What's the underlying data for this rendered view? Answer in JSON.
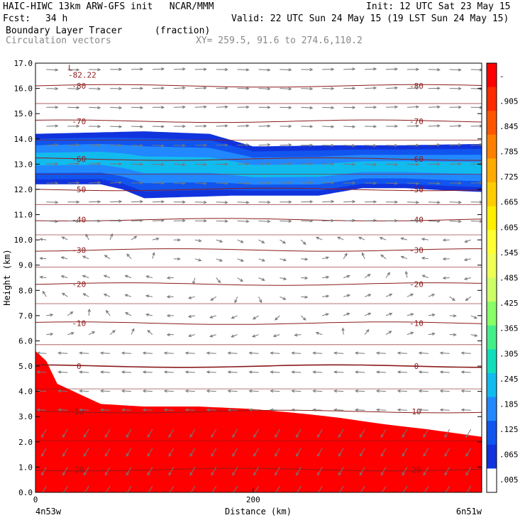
{
  "header": {
    "title_left": "HAIC-HIWC 13km ARW-GFS init   NCAR/MMM",
    "init": "Init: 12 UTC Sat 23 May 15",
    "fcst_label": "Fcst:",
    "fcst_value": "34 h",
    "valid": "Valid: 22 UTC Sun 24 May 15 (19 LST Sun 24 May 15)",
    "field_name": "Boundary Layer Tracer",
    "field_units": "(fraction)",
    "vector_name": "Circulation vectors",
    "xy": "XY= 259.5, 91.6 to 274.6,110.2"
  },
  "chart_data": {
    "type": "heatmap",
    "ylabel": "Height (km)",
    "xlabel": "Distance (km)",
    "ylim": [
      0,
      17
    ],
    "xlim": [
      0,
      410
    ],
    "yticks": [
      "0.0",
      "1.0",
      "2.0",
      "3.0",
      "4.0",
      "5.0",
      "6.0",
      "7.0",
      "8.0",
      "9.0",
      "10.0",
      "11.0",
      "12.0",
      "13.0",
      "14.0",
      "15.0",
      "16.0",
      "17.0"
    ],
    "xticks": [
      {
        "value": 0,
        "label": "0"
      },
      {
        "value": 200,
        "label": "200"
      }
    ],
    "x_endpoints": {
      "left": "4n53w",
      "right": "6n51w"
    },
    "colorbar": {
      "labels": [
        "-",
        ".905",
        ".845",
        ".785",
        ".725",
        ".665",
        ".605",
        ".545",
        ".485",
        ".425",
        ".365",
        ".305",
        ".245",
        ".185",
        ".125",
        ".065",
        ".005"
      ],
      "colors": [
        "#ff0000",
        "#ff2a00",
        "#ff5500",
        "#ff7f00",
        "#ffaa00",
        "#ffcc00",
        "#ffee00",
        "#ffff33",
        "#eeff55",
        "#ccff66",
        "#88ff66",
        "#44ee88",
        "#11ddbb",
        "#11bbee",
        "#2288ff",
        "#1155ee",
        "#1133dd",
        "#ffffff"
      ]
    },
    "bl_top_km": [
      [
        0,
        5.6
      ],
      [
        10,
        5.2
      ],
      [
        20,
        4.3
      ],
      [
        30,
        4.1
      ],
      [
        60,
        3.5
      ],
      [
        100,
        3.4
      ],
      [
        150,
        3.4
      ],
      [
        200,
        3.3
      ],
      [
        250,
        3.1
      ],
      [
        280,
        2.95
      ],
      [
        320,
        2.7
      ],
      [
        360,
        2.5
      ],
      [
        410,
        2.2
      ]
    ],
    "upper_layer_top_km": [
      [
        0,
        14.2
      ],
      [
        100,
        14.3
      ],
      [
        160,
        14.2
      ],
      [
        200,
        13.7
      ],
      [
        280,
        13.75
      ],
      [
        340,
        13.75
      ],
      [
        410,
        13.8
      ]
    ],
    "upper_layer_bottom_km": [
      [
        0,
        12.2
      ],
      [
        60,
        12.2
      ],
      [
        80,
        12.0
      ],
      [
        100,
        11.65
      ],
      [
        140,
        11.7
      ],
      [
        180,
        11.75
      ],
      [
        260,
        11.75
      ],
      [
        300,
        12.05
      ],
      [
        340,
        12.05
      ],
      [
        380,
        11.95
      ],
      [
        410,
        11.9
      ]
    ],
    "temperature_contours": [
      {
        "label": "-80",
        "km": 16.1
      },
      {
        "label": "-70",
        "km": 14.7
      },
      {
        "label": "-60",
        "km": 13.2
      },
      {
        "label": "-50",
        "km": 12.0
      },
      {
        "label": "-40",
        "km": 10.8
      },
      {
        "label": "-30",
        "km": 9.6
      },
      {
        "label": "-20",
        "km": 8.25
      },
      {
        "label": "-10",
        "km": 6.7
      },
      {
        "label": "0",
        "km": 5.0
      },
      {
        "label": "10",
        "km": 3.2
      },
      {
        "label": "20",
        "km": 0.9
      }
    ],
    "contour_minimum_label": "L",
    "contour_minimum_value": "-82.22"
  }
}
